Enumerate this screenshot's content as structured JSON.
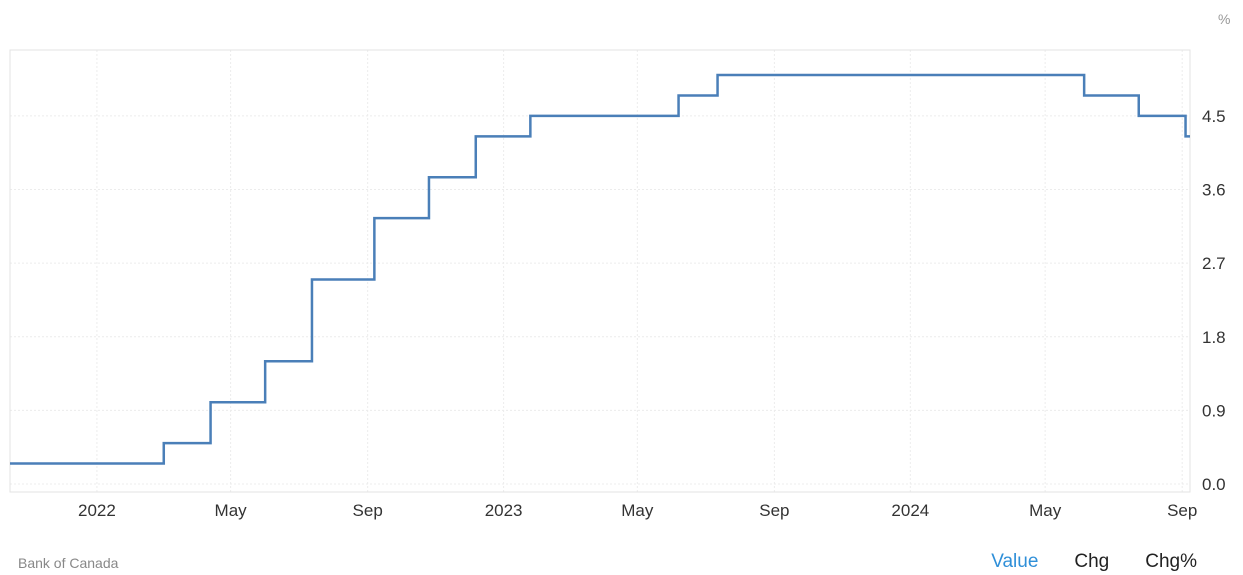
{
  "chart_data": {
    "type": "line",
    "step": true,
    "yunit": "%",
    "ylim": [
      0.0,
      5.0
    ],
    "yticks": [
      "0.0",
      "0.9",
      "1.8",
      "2.7",
      "3.6",
      "4.5"
    ],
    "xticks": [
      "2022",
      "May",
      "Sep",
      "2023",
      "May",
      "Sep",
      "2024",
      "May",
      "Sep"
    ],
    "xtick_dates": [
      "2022-01-01",
      "2022-05-01",
      "2022-09-01",
      "2023-01-01",
      "2023-05-01",
      "2023-09-01",
      "2024-01-01",
      "2024-05-01",
      "2024-09-01"
    ],
    "xlim": [
      "2021-10-15",
      "2024-09-08"
    ],
    "color": "#4a7fb8",
    "grid": true,
    "series": [
      {
        "dates": [
          "2021-10-15",
          "2022-03-02",
          "2022-04-13",
          "2022-06-01",
          "2022-07-13",
          "2022-09-07",
          "2022-10-26",
          "2022-12-07",
          "2023-01-25",
          "2023-06-07",
          "2023-07-12",
          "2024-06-05",
          "2024-07-24",
          "2024-09-04",
          "2024-09-08"
        ],
        "values": [
          0.25,
          0.5,
          1.0,
          1.5,
          2.5,
          3.25,
          3.75,
          4.25,
          4.5,
          4.75,
          5.0,
          4.75,
          4.5,
          4.25,
          4.25
        ]
      }
    ]
  },
  "footer": {
    "source": "Bank of Canada",
    "tabs": [
      {
        "label": "Value",
        "active": true
      },
      {
        "label": "Chg",
        "active": false
      },
      {
        "label": "Chg%",
        "active": false
      }
    ]
  }
}
